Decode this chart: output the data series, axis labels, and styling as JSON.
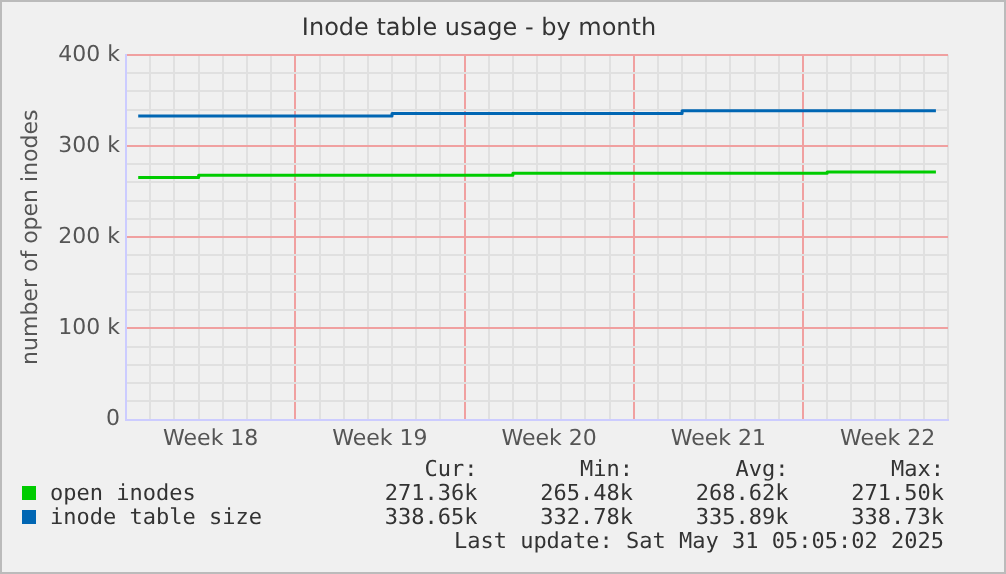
{
  "chart_data": {
    "type": "step",
    "title": "Inode table usage - by month",
    "ylabel": "number of open inodes",
    "categories": [
      null,
      null,
      null,
      "Week 18",
      null,
      null,
      null,
      null,
      null,
      null,
      "Week 19",
      null,
      null,
      null,
      null,
      null,
      null,
      "Week 20",
      null,
      null,
      null,
      null,
      null,
      null,
      "Week 21",
      null,
      null,
      null,
      null,
      null,
      null,
      "Week 22",
      null,
      null
    ],
    "ylim": [
      0,
      400000
    ],
    "yticks": [
      {
        "value": 0,
        "label": "0"
      },
      {
        "value": 20000,
        "label": null
      },
      {
        "value": 40000,
        "label": null
      },
      {
        "value": 60000,
        "label": null
      },
      {
        "value": 80000,
        "label": null
      },
      {
        "value": 100000,
        "label": "100 k"
      },
      {
        "value": 120000,
        "label": null
      },
      {
        "value": 140000,
        "label": null
      },
      {
        "value": 160000,
        "label": null
      },
      {
        "value": 180000,
        "label": null
      },
      {
        "value": 200000,
        "label": "200 k"
      },
      {
        "value": 220000,
        "label": null
      },
      {
        "value": 240000,
        "label": null
      },
      {
        "value": 260000,
        "label": null
      },
      {
        "value": 280000,
        "label": null
      },
      {
        "value": 300000,
        "label": "300 k"
      },
      {
        "value": 320000,
        "label": null
      },
      {
        "value": 340000,
        "label": null
      },
      {
        "value": 360000,
        "label": null
      },
      {
        "value": 380000,
        "label": null
      },
      {
        "value": 400000,
        "label": "400 k"
      }
    ],
    "grid": true,
    "legend": "bottom",
    "series": [
      {
        "name": "open inodes",
        "color": "#00cc00",
        "values": [
          265500,
          265500,
          265500,
          268000,
          268000,
          268000,
          268000,
          268000,
          268000,
          268000,
          268000,
          268000,
          268000,
          268000,
          268000,
          268000,
          270000,
          270000,
          270000,
          270000,
          270000,
          270000,
          270000,
          270000,
          270000,
          270000,
          270000,
          270000,
          270000,
          271500,
          271500,
          271500,
          271500,
          271500
        ]
      },
      {
        "name": "inode table size",
        "color": "#0066b3",
        "values": [
          332800,
          332800,
          332800,
          332800,
          332800,
          332800,
          332800,
          332800,
          332800,
          332800,
          332800,
          335500,
          335500,
          335500,
          335500,
          335500,
          335500,
          335500,
          335500,
          335500,
          335500,
          335500,
          335500,
          338700,
          338700,
          338700,
          338700,
          338700,
          338700,
          338700,
          338700,
          338700,
          338700,
          338700
        ]
      }
    ],
    "annotations": [
      "Cur:",
      "Min:",
      "Avg:",
      "Max:",
      "271.36k",
      "265.48k",
      "268.62k",
      "271.50k",
      "338.65k",
      "332.78k",
      "335.89k",
      "338.73k",
      "Last update: Sat May 31 05:05:02 2025"
    ]
  }
}
